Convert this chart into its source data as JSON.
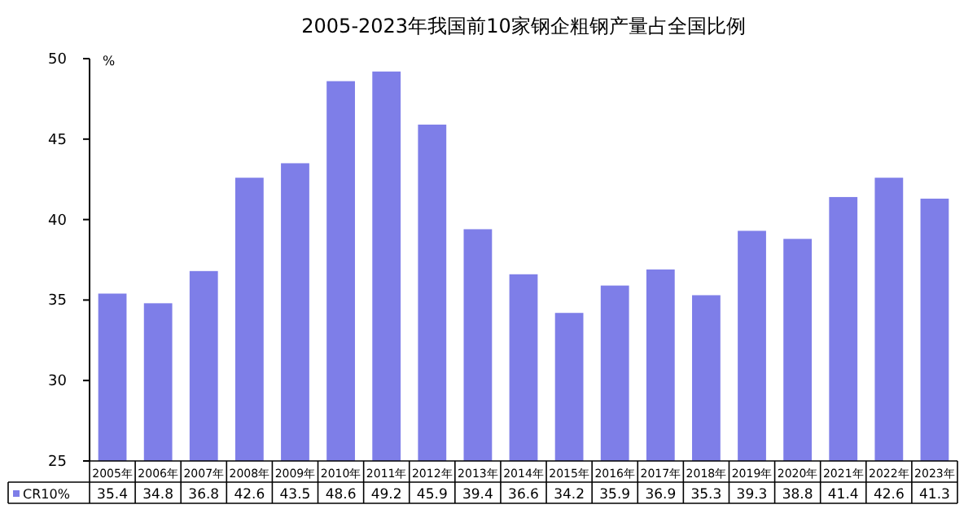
{
  "chart_data": {
    "type": "bar",
    "title": "2005-2023年我国前10家钢企粗钢产量占全国比例",
    "ylabel": "%",
    "categories": [
      "2005年",
      "2006年",
      "2007年",
      "2008年",
      "2009年",
      "2010年",
      "2011年",
      "2012年",
      "2013年",
      "2014年",
      "2015年",
      "2016年",
      "2017年",
      "2018年",
      "2019年",
      "2020年",
      "2021年",
      "2022年",
      "2023年"
    ],
    "series": [
      {
        "name": "CR10%",
        "color": "#7e7ee8",
        "values": [
          35.4,
          34.8,
          36.8,
          42.6,
          43.5,
          48.6,
          49.2,
          45.9,
          39.4,
          36.6,
          34.2,
          35.9,
          36.9,
          35.3,
          39.3,
          38.8,
          41.4,
          42.6,
          41.3
        ]
      }
    ],
    "ylim": [
      25,
      50
    ],
    "yticks": [
      25,
      30,
      35,
      40,
      45,
      50
    ],
    "grid": false,
    "legend": "bottom",
    "data_labels": true
  }
}
